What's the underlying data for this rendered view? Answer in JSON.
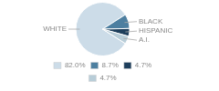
{
  "chart_data": {
    "type": "pie",
    "categories": [
      "WHITE",
      "BLACK",
      "HISPANIC",
      "A.I."
    ],
    "values": [
      82.0,
      8.7,
      4.7,
      4.7
    ],
    "value_labels": [
      "82.0%",
      "8.7%",
      "4.7%",
      "4.7%"
    ],
    "colors": [
      "#ccdce8",
      "#4d7fa0",
      "#1e3f5c",
      "#b8cdd8"
    ],
    "legend": "bottom"
  }
}
